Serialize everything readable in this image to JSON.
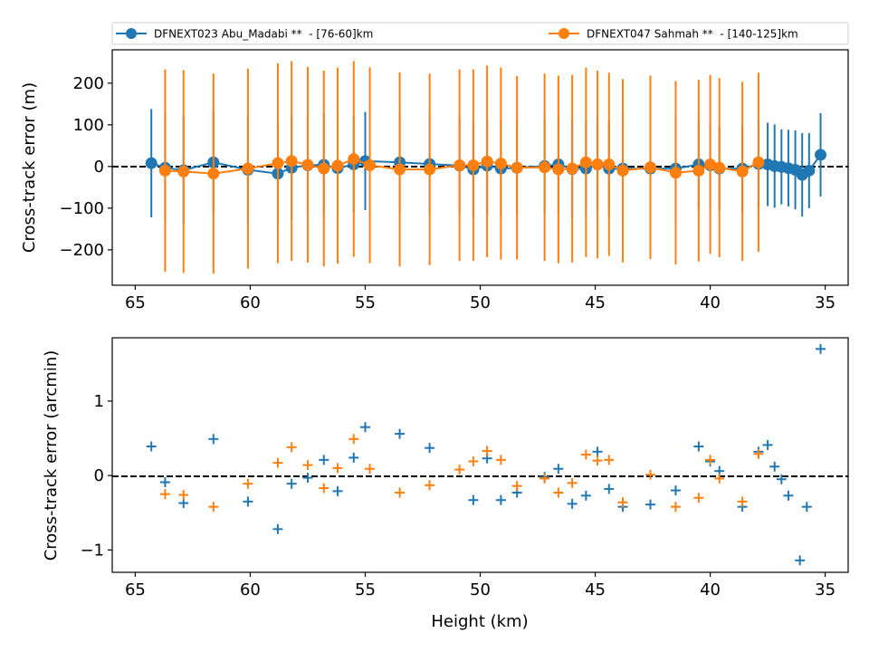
{
  "legend": {
    "entries": [
      {
        "label": "DFNEXT023 Abu_Madabi **  - [76-60]km",
        "color": "#1f77b4"
      },
      {
        "label": "DFNEXT047 Sahmah **  - [140-125]km",
        "color": "#ff7f0e"
      }
    ],
    "placement": "top, above axes"
  },
  "chart_data": [
    {
      "type": "line",
      "panel": "top",
      "xlabel": "",
      "ylabel": "Cross-track error (m)",
      "xlim": [
        66,
        34
      ],
      "ylim": [
        -285,
        280
      ],
      "x_ticks": [
        65,
        60,
        55,
        50,
        45,
        40,
        35
      ],
      "x_tick_labels": [
        "65",
        "60",
        "55",
        "50",
        "45",
        "40",
        "35"
      ],
      "y_ticks": [
        -200,
        -100,
        0,
        100,
        200
      ],
      "y_tick_labels": [
        "−200",
        "−100",
        "0",
        "100",
        "200"
      ],
      "reference_line": {
        "y": 0,
        "style": "dashed",
        "color": "#000000"
      },
      "grid": false,
      "series": [
        {
          "name": "DFNEXT023 Abu_Madabi **  - [76-60]km",
          "color": "#1f77b4",
          "marker": "circle",
          "x": [
            64.3,
            63.7,
            62.9,
            61.6,
            60.1,
            58.8,
            58.2,
            57.5,
            56.8,
            56.2,
            55.5,
            55.0,
            53.5,
            52.2,
            50.9,
            50.3,
            49.7,
            49.1,
            48.4,
            47.2,
            46.6,
            46.0,
            45.4,
            44.9,
            44.4,
            43.8,
            42.6,
            41.5,
            40.5,
            40.0,
            39.6,
            38.6,
            37.9,
            37.5,
            37.2,
            36.9,
            36.6,
            36.3,
            36.0,
            35.7,
            35.2
          ],
          "y": [
            8,
            -3,
            -9,
            10,
            -8,
            -17,
            -3,
            3,
            4,
            -4,
            5,
            13,
            10,
            6,
            2,
            -7,
            2,
            -5,
            -3,
            1,
            5,
            -6,
            -5,
            5,
            -5,
            -5,
            -5,
            -5,
            5,
            3,
            -5,
            -5,
            6,
            5,
            1,
            -1,
            -4,
            -8,
            -20,
            -10,
            28
          ],
          "err": [
            130,
            130,
            130,
            125,
            128,
            125,
            123,
            118,
            123,
            120,
            115,
            118,
            120,
            118,
            115,
            115,
            115,
            115,
            115,
            115,
            118,
            118,
            115,
            115,
            115,
            120,
            115,
            120,
            105,
            100,
            100,
            105,
            105,
            100,
            100,
            90,
            92,
            95,
            100,
            90,
            100
          ]
        },
        {
          "name": "DFNEXT047 Sahmah **  - [140-125]km",
          "color": "#ff7f0e",
          "marker": "circle",
          "x": [
            63.7,
            62.9,
            61.6,
            60.1,
            58.8,
            58.2,
            57.5,
            56.8,
            56.2,
            55.5,
            54.8,
            53.5,
            52.2,
            50.9,
            50.3,
            49.7,
            49.1,
            48.4,
            47.2,
            46.6,
            46.0,
            45.4,
            44.9,
            44.4,
            43.8,
            42.6,
            41.5,
            40.5,
            40.0,
            39.6,
            38.6,
            37.9
          ],
          "y": [
            -10,
            -12,
            -17,
            -5,
            8,
            13,
            4,
            -5,
            2,
            18,
            3,
            -7,
            -7,
            3,
            3,
            12,
            7,
            -3,
            -2,
            -7,
            -5,
            10,
            5,
            5,
            -10,
            -2,
            -15,
            -10,
            5,
            -3,
            -12,
            10
          ],
          "err": [
            243,
            243,
            240,
            240,
            240,
            240,
            235,
            235,
            235,
            235,
            235,
            233,
            230,
            230,
            230,
            230,
            230,
            220,
            225,
            225,
            225,
            227,
            225,
            220,
            220,
            220,
            220,
            218,
            215,
            215,
            215,
            215
          ]
        }
      ]
    },
    {
      "type": "scatter",
      "panel": "bottom",
      "xlabel": "Height (km)",
      "ylabel": "Cross-track error (arcmin)",
      "xlim": [
        66,
        34
      ],
      "ylim": [
        -1.3,
        1.85
      ],
      "x_ticks": [
        65,
        60,
        55,
        50,
        45,
        40,
        35
      ],
      "x_tick_labels": [
        "65",
        "60",
        "55",
        "50",
        "45",
        "40",
        "35"
      ],
      "y_ticks": [
        -1,
        0,
        1
      ],
      "y_tick_labels": [
        "−1",
        "0",
        "1"
      ],
      "reference_line": {
        "y": 0,
        "style": "dashed",
        "color": "#000000"
      },
      "grid": false,
      "series": [
        {
          "name": "DFNEXT023 Abu_Madabi **  - [76-60]km",
          "color": "#1f77b4",
          "marker": "plus",
          "x": [
            64.3,
            63.7,
            62.9,
            61.6,
            60.1,
            58.8,
            58.2,
            57.5,
            56.8,
            56.2,
            55.5,
            55.0,
            53.5,
            52.2,
            50.3,
            49.7,
            49.1,
            48.4,
            47.2,
            46.6,
            46.0,
            45.4,
            44.9,
            44.4,
            43.8,
            42.6,
            41.5,
            40.5,
            40.0,
            39.6,
            38.6,
            37.9,
            37.5,
            37.2,
            36.9,
            36.6,
            36.1,
            35.8,
            35.2
          ],
          "y": [
            0.39,
            -0.09,
            -0.37,
            0.49,
            -0.35,
            -0.72,
            -0.11,
            -0.03,
            0.21,
            -0.21,
            0.24,
            0.65,
            0.56,
            0.37,
            -0.33,
            0.23,
            -0.33,
            -0.23,
            -0.02,
            0.09,
            -0.38,
            -0.27,
            0.32,
            -0.18,
            -0.42,
            -0.39,
            -0.2,
            0.39,
            0.19,
            0.06,
            -0.42,
            0.32,
            0.41,
            0.12,
            -0.05,
            -0.27,
            -1.14,
            -0.42,
            1.7
          ]
        },
        {
          "name": "DFNEXT047 Sahmah **  - [140-125]km",
          "color": "#ff7f0e",
          "marker": "plus",
          "x": [
            63.7,
            62.9,
            61.6,
            60.1,
            58.8,
            58.2,
            57.5,
            56.8,
            56.2,
            55.5,
            54.8,
            53.5,
            52.2,
            50.9,
            50.3,
            49.7,
            49.1,
            48.4,
            47.2,
            46.6,
            46.0,
            45.4,
            44.9,
            44.4,
            43.8,
            42.6,
            41.5,
            40.5,
            40.0,
            39.6,
            38.6,
            37.9
          ],
          "y": [
            -0.25,
            -0.26,
            -0.42,
            -0.11,
            0.17,
            0.38,
            0.14,
            -0.17,
            0.1,
            0.49,
            0.09,
            -0.23,
            -0.13,
            0.08,
            0.19,
            0.33,
            0.21,
            -0.14,
            -0.04,
            -0.23,
            -0.1,
            0.28,
            0.2,
            0.21,
            -0.36,
            0.01,
            -0.42,
            -0.3,
            0.21,
            -0.04,
            -0.35,
            0.29
          ]
        }
      ]
    }
  ]
}
